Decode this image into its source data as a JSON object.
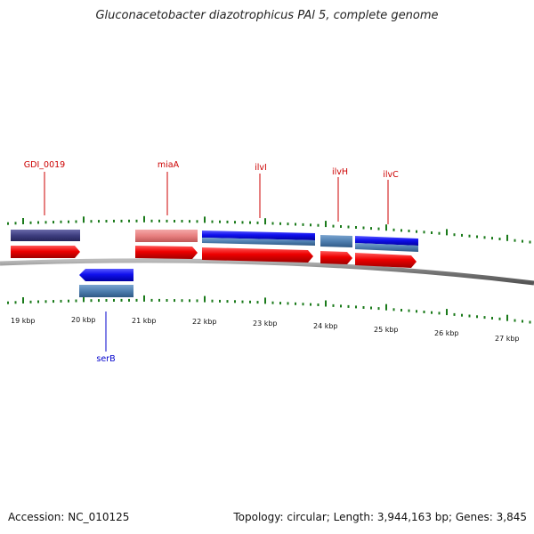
{
  "title": "Gluconacetobacter diazotrophicus PAl 5, complete genome",
  "footer": {
    "accession": "Accession: NC_010125",
    "summary": "Topology: circular; Length: 3,944,163 bp; Genes: 3,845"
  },
  "colors": {
    "gene_label": "#cc0000",
    "gene_label_reverse": "#0000cc",
    "tick": "#1a7a1a",
    "backbone": "#7a7a7a",
    "cds_forward": "#ee0000",
    "cds_reverse": "#1010ee",
    "feature_steel": "#4f7fb0",
    "feature_navy": "#3e3e80",
    "feature_salmon": "#e88080"
  },
  "scale": {
    "unit": "kbp",
    "labels": [
      "19 kbp",
      "20 kbp",
      "21 kbp",
      "22 kbp",
      "23 kbp",
      "24 kbp",
      "25 kbp",
      "26 kbp",
      "27 kbp"
    ]
  },
  "genes": [
    {
      "name": "GDI_0019",
      "strand": "+"
    },
    {
      "name": "serB",
      "strand": "-"
    },
    {
      "name": "miaA",
      "strand": "+"
    },
    {
      "name": "ilvI",
      "strand": "+"
    },
    {
      "name": "ilvH",
      "strand": "+"
    },
    {
      "name": "ilvC",
      "strand": "+"
    }
  ]
}
